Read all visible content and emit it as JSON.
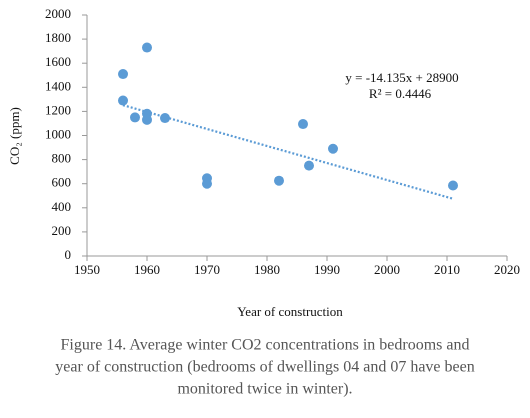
{
  "chart_data": {
    "type": "scatter",
    "x_label": "Year of construction",
    "y_label": "CO₂ (ppm)",
    "series": [
      {
        "name": "CO2",
        "color": "#5b9bd5",
        "x": [
          1956,
          1956,
          1958,
          1960,
          1960,
          1960,
          1963,
          1970,
          1970,
          1982,
          1986,
          1987,
          1991,
          2011
        ],
        "values": [
          1510,
          1290,
          1150,
          1730,
          1180,
          1130,
          1145,
          645,
          600,
          625,
          1095,
          750,
          890,
          585
        ]
      }
    ],
    "trendline": {
      "x": [
        1956,
        2011
      ],
      "values": [
        1252,
        475
      ],
      "color": "#5b9bd5"
    },
    "annotations": [
      "y = -14.135x + 28900",
      "R² = 0.4446"
    ],
    "xlim": [
      1950,
      2020
    ],
    "xticks": [
      1950,
      1960,
      1970,
      1980,
      1990,
      2000,
      2010,
      2020
    ],
    "ylim": [
      0,
      2000
    ],
    "yticks": [
      0,
      200,
      400,
      600,
      800,
      1000,
      1200,
      1400,
      1600,
      1800,
      2000
    ],
    "grid": false
  },
  "caption": [
    "Figure 14. Average winter CO2 concentrations in bedrooms and",
    "year of construction (bedrooms of dwellings 04 and 07 have been",
    "monitored twice in winter)."
  ]
}
